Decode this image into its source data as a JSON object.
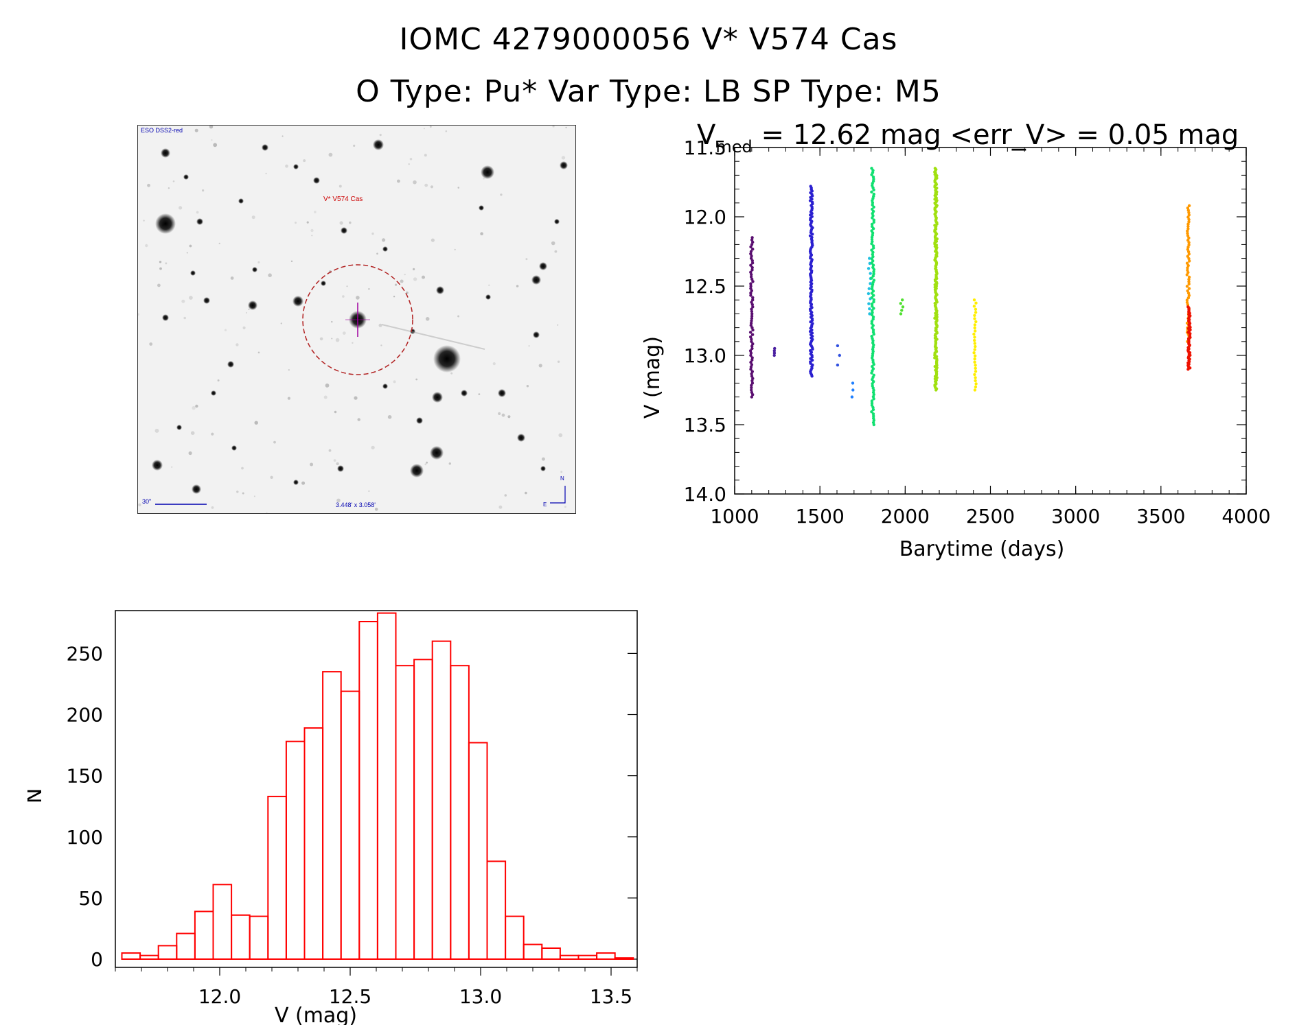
{
  "header": {
    "line1": "IOMC 4279000056    V* V574 Cas",
    "line2": "O Type: Pu*  Var Type: LB  SP Type: M5"
  },
  "finder": {
    "survey_label": "ESO DSS2-red",
    "object_label": "V* V574 Cas",
    "scale_label": "30\"",
    "fov_label": "3.448' x 3.058'",
    "north_label": "N",
    "east_label": "E"
  },
  "colors": {
    "hist_bar": "#ff0000",
    "circle": "#b22222",
    "labels_blue": "#0000b0",
    "labels_red": "#cc0000"
  },
  "chart_data": [
    {
      "type": "scatter",
      "title": "V",
      "title_sub": "med",
      "title_rest": " = 12.62 mag <err_V> = 0.05 mag",
      "xlabel": "Barytime (days)",
      "ylabel": "V (mag)",
      "xlim": [
        1000,
        4000
      ],
      "ylim": [
        14.0,
        11.5
      ],
      "xticks": [
        "1000",
        "1500",
        "2000",
        "2500",
        "3000",
        "3500",
        "4000"
      ],
      "yticks": [
        "11.5",
        "12.0",
        "12.5",
        "13.0",
        "13.5",
        "14.0"
      ],
      "groups": [
        {
          "x": 1100,
          "ymin": 12.15,
          "ymax": 13.3,
          "n": 70,
          "color": "#5a0f70"
        },
        {
          "x": 1230,
          "ymin": 12.95,
          "ymax": 13.0,
          "n": 4,
          "color": "#4a1fa0"
        },
        {
          "x": 1450,
          "ymin": 11.78,
          "ymax": 13.15,
          "n": 120,
          "color": "#2a1fd0"
        },
        {
          "x": 1610,
          "ymin": 12.93,
          "ymax": 13.07,
          "n": 3,
          "color": "#3050e0"
        },
        {
          "x": 1690,
          "ymin": 13.2,
          "ymax": 13.3,
          "n": 3,
          "color": "#2080ff"
        },
        {
          "x": 1790,
          "ymin": 12.3,
          "ymax": 12.7,
          "n": 12,
          "color": "#20c0e0"
        },
        {
          "x": 1810,
          "ymin": 11.65,
          "ymax": 13.5,
          "n": 120,
          "color": "#10e070"
        },
        {
          "x": 1980,
          "ymin": 12.6,
          "ymax": 12.7,
          "n": 5,
          "color": "#50e030"
        },
        {
          "x": 2180,
          "ymin": 11.65,
          "ymax": 13.25,
          "n": 180,
          "color": "#a0e010"
        },
        {
          "x": 2410,
          "ymin": 12.6,
          "ymax": 13.25,
          "n": 30,
          "color": "#ffee00"
        },
        {
          "x": 3660,
          "ymin": 11.92,
          "ymax": 12.9,
          "n": 60,
          "color": "#ff9900"
        },
        {
          "x": 3665,
          "ymin": 12.65,
          "ymax": 13.1,
          "n": 50,
          "color": "#ee1100"
        }
      ]
    },
    {
      "type": "bar",
      "xlabel": "V (mag)",
      "ylabel": "N",
      "xlim": [
        11.6,
        13.6
      ],
      "ylim": [
        0,
        285
      ],
      "xticks": [
        "12.0",
        "12.5",
        "13.0",
        "13.5"
      ],
      "yticks": [
        "0",
        "50",
        "100",
        "150",
        "200",
        "250"
      ],
      "bin_start": 11.625,
      "bin_width": 0.07,
      "values": [
        5,
        3,
        11,
        21,
        39,
        61,
        36,
        35,
        133,
        178,
        189,
        235,
        219,
        276,
        283,
        240,
        245,
        260,
        240,
        177,
        80,
        35,
        12,
        9,
        3,
        3,
        5,
        1
      ]
    }
  ]
}
